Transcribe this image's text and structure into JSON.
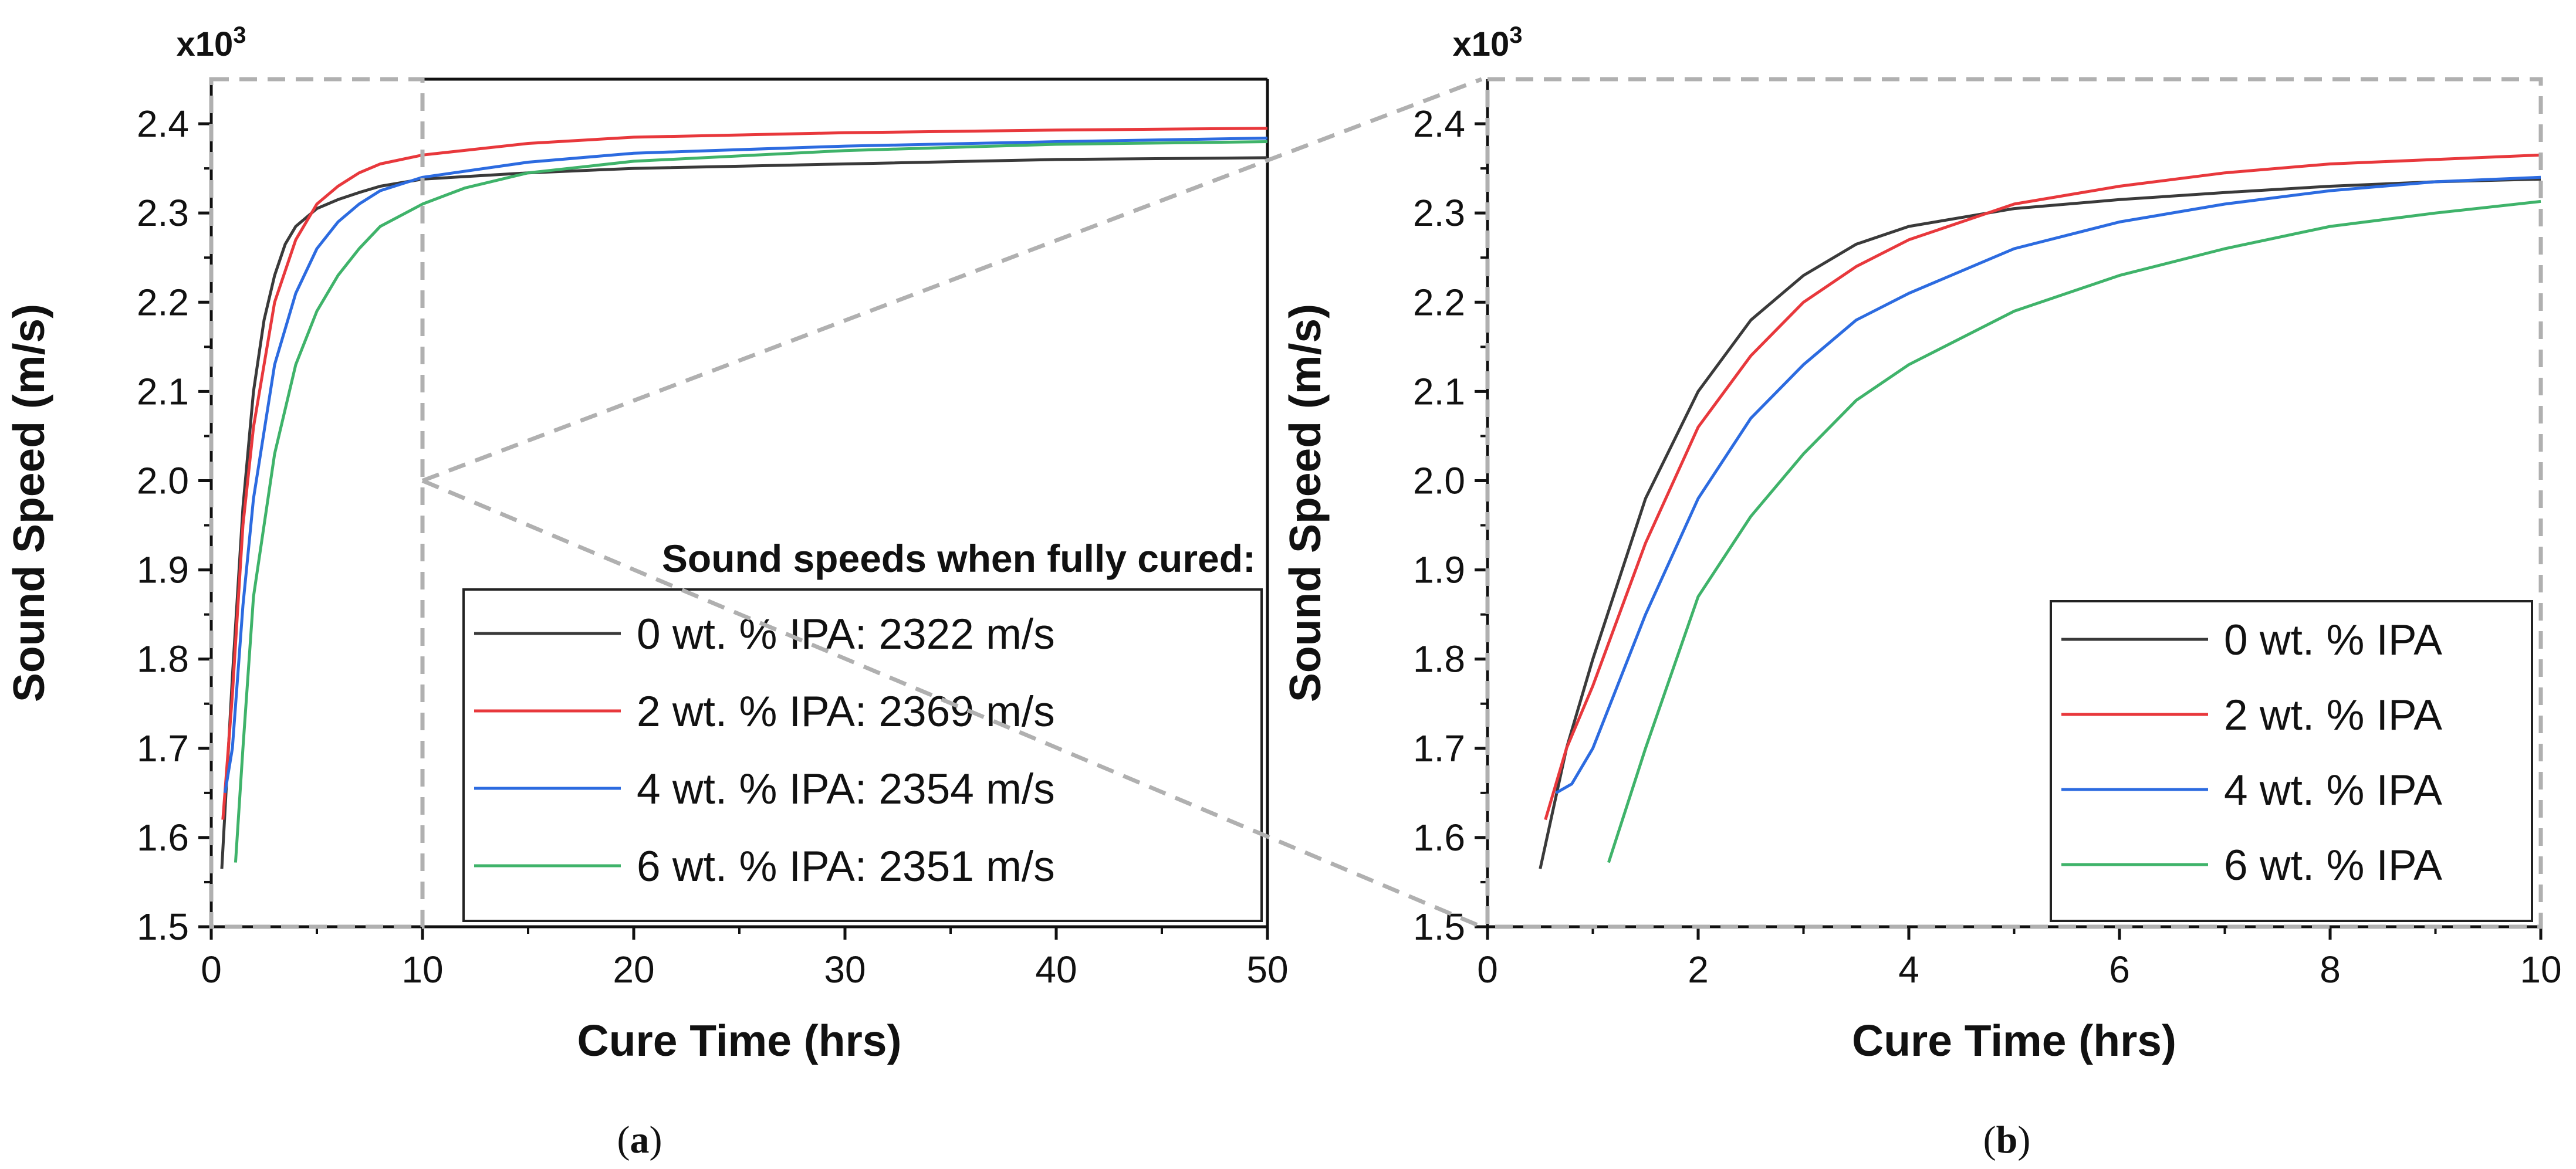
{
  "chart_data": [
    {
      "type": "line",
      "panel": "a",
      "caption_open": "(",
      "caption_letter": "a",
      "caption_close": ")",
      "xlabel": "Cure Time (hrs)",
      "ylabel": "Sound Speed (m/s)",
      "y_multiplier_base": "x10",
      "y_multiplier_exp": "3",
      "xlim": [
        0,
        50
      ],
      "ylim": [
        1.5,
        2.45
      ],
      "x_ticks": [
        0,
        10,
        20,
        30,
        40,
        50
      ],
      "y_ticks": [
        1.5,
        1.6,
        1.7,
        1.8,
        1.9,
        2.0,
        2.1,
        2.2,
        2.3,
        2.4
      ],
      "y_tick_labels": [
        "1.5",
        "1.6",
        "1.7",
        "1.8",
        "1.9",
        "2.0",
        "2.1",
        "2.2",
        "2.3",
        "2.4"
      ],
      "zoom_region": {
        "x": [
          0,
          10
        ],
        "y": [
          1.5,
          2.45
        ]
      },
      "legend_title": "Sound speeds when fully cured:",
      "legend_position": "bottom-right",
      "series": [
        {
          "name": "0 wt. % IPA: 2322 m/s",
          "color": "#3a3a3a",
          "x": [
            0.5,
            1,
            1.5,
            2,
            2.5,
            3,
            3.5,
            4,
            5,
            6,
            7,
            8,
            10,
            15,
            20,
            30,
            40,
            50
          ],
          "y": [
            1.565,
            1.78,
            1.97,
            2.1,
            2.18,
            2.23,
            2.265,
            2.285,
            2.305,
            2.315,
            2.323,
            2.33,
            2.338,
            2.345,
            2.35,
            2.355,
            2.36,
            2.362
          ]
        },
        {
          "name": "2 wt. % IPA: 2369 m/s",
          "color": "#e8383c",
          "x": [
            0.55,
            1,
            1.5,
            2,
            3,
            4,
            5,
            6,
            7,
            8,
            10,
            15,
            20,
            30,
            40,
            50
          ],
          "y": [
            1.62,
            1.76,
            1.95,
            2.06,
            2.2,
            2.27,
            2.31,
            2.33,
            2.345,
            2.355,
            2.365,
            2.378,
            2.385,
            2.39,
            2.393,
            2.395
          ]
        },
        {
          "name": "4 wt. % IPA: 2354 m/s",
          "color": "#2c6be0",
          "x": [
            0.65,
            1,
            1.5,
            2,
            3,
            4,
            5,
            6,
            7,
            8,
            10,
            15,
            20,
            30,
            40,
            50
          ],
          "y": [
            1.65,
            1.7,
            1.86,
            1.98,
            2.13,
            2.21,
            2.26,
            2.29,
            2.31,
            2.325,
            2.34,
            2.357,
            2.367,
            2.375,
            2.38,
            2.384
          ]
        },
        {
          "name": "6 wt. % IPA: 2351 m/s",
          "color": "#3fb36a",
          "x": [
            1.15,
            1.5,
            2,
            3,
            4,
            5,
            6,
            7,
            8,
            10,
            12,
            15,
            20,
            30,
            40,
            50
          ],
          "y": [
            1.572,
            1.7,
            1.87,
            2.03,
            2.13,
            2.19,
            2.23,
            2.26,
            2.285,
            2.31,
            2.328,
            2.345,
            2.358,
            2.37,
            2.377,
            2.38
          ]
        }
      ]
    },
    {
      "type": "line",
      "panel": "b",
      "caption_open": "(",
      "caption_letter": "b",
      "caption_close": ")",
      "xlabel": "Cure Time (hrs)",
      "ylabel": "Sound Speed (m/s)",
      "y_multiplier_base": "x10",
      "y_multiplier_exp": "3",
      "xlim": [
        0,
        10
      ],
      "ylim": [
        1.5,
        2.45
      ],
      "x_ticks": [
        0,
        2,
        4,
        6,
        8,
        10
      ],
      "y_ticks": [
        1.5,
        1.6,
        1.7,
        1.8,
        1.9,
        2.0,
        2.1,
        2.2,
        2.3,
        2.4
      ],
      "y_tick_labels": [
        "1.5",
        "1.6",
        "1.7",
        "1.8",
        "1.9",
        "2.0",
        "2.1",
        "2.2",
        "2.3",
        "2.4"
      ],
      "legend_position": "bottom-right",
      "series": [
        {
          "name": "0 wt. % IPA",
          "color": "#3a3a3a",
          "x": [
            0.5,
            0.75,
            1,
            1.5,
            2,
            2.5,
            3,
            3.5,
            4,
            5,
            6,
            7,
            8,
            9,
            10
          ],
          "y": [
            1.565,
            1.7,
            1.8,
            1.98,
            2.1,
            2.18,
            2.23,
            2.265,
            2.285,
            2.305,
            2.315,
            2.323,
            2.33,
            2.335,
            2.338
          ]
        },
        {
          "name": "2 wt. % IPA",
          "color": "#e8383c",
          "x": [
            0.55,
            0.75,
            1,
            1.5,
            2,
            2.5,
            3,
            3.5,
            4,
            5,
            6,
            7,
            8,
            9,
            10
          ],
          "y": [
            1.62,
            1.7,
            1.77,
            1.93,
            2.06,
            2.14,
            2.2,
            2.24,
            2.27,
            2.31,
            2.33,
            2.345,
            2.355,
            2.36,
            2.365
          ]
        },
        {
          "name": "4 wt. % IPA",
          "color": "#2c6be0",
          "x": [
            0.65,
            0.8,
            1,
            1.5,
            2,
            2.5,
            3,
            3.5,
            4,
            5,
            6,
            7,
            8,
            9,
            10
          ],
          "y": [
            1.65,
            1.66,
            1.7,
            1.85,
            1.98,
            2.07,
            2.13,
            2.18,
            2.21,
            2.26,
            2.29,
            2.31,
            2.325,
            2.335,
            2.34
          ]
        },
        {
          "name": "6 wt. % IPA",
          "color": "#3fb36a",
          "x": [
            1.15,
            1.5,
            2,
            2.5,
            3,
            3.5,
            4,
            5,
            6,
            7,
            8,
            9,
            10
          ],
          "y": [
            1.572,
            1.7,
            1.87,
            1.96,
            2.03,
            2.09,
            2.13,
            2.19,
            2.23,
            2.26,
            2.285,
            2.3,
            2.313
          ]
        }
      ]
    }
  ]
}
